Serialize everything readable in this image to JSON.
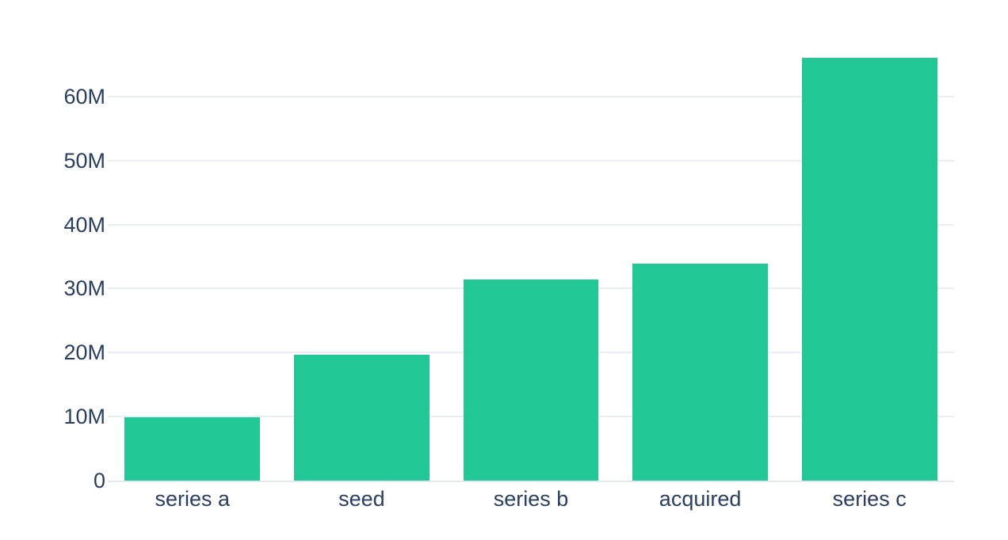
{
  "chart_data": {
    "type": "bar",
    "title": "",
    "xlabel": "",
    "ylabel": "",
    "unit": "millions",
    "categories": [
      "series a",
      "seed",
      "series b",
      "acquired",
      "series c"
    ],
    "values": [
      9.9,
      19.7,
      31.4,
      33.9,
      66.0
    ],
    "yticks": [
      {
        "value": 0,
        "label": "0"
      },
      {
        "value": 10,
        "label": "10M"
      },
      {
        "value": 20,
        "label": "20M"
      },
      {
        "value": 30,
        "label": "30M"
      },
      {
        "value": 40,
        "label": "40M"
      },
      {
        "value": 50,
        "label": "50M"
      },
      {
        "value": 60,
        "label": "60M"
      }
    ],
    "ylim": [
      0,
      69.5
    ],
    "grid": true,
    "legend": false,
    "colors": {
      "bar": "#21c795",
      "gridline": "#e9eef6",
      "zeroline": "#e4e9f2",
      "tick_text": "#2a3f5f",
      "background": "#ffffff"
    }
  }
}
